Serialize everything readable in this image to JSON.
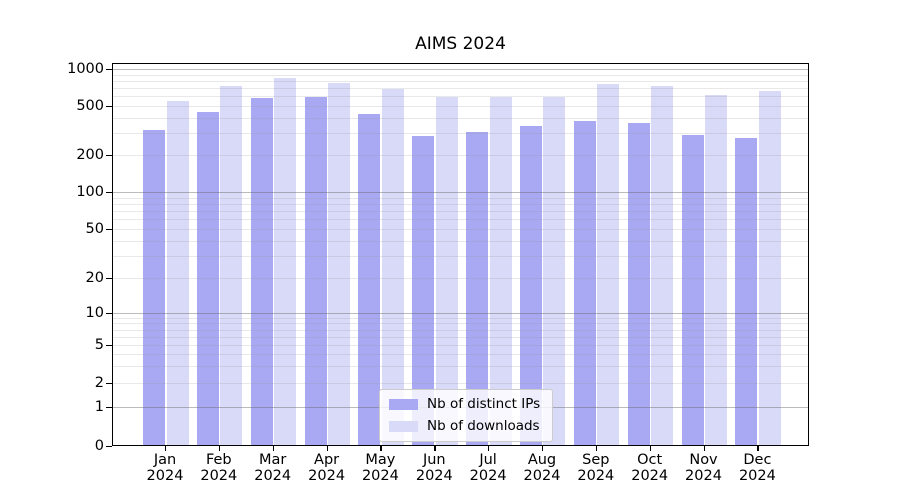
{
  "title": "AIMS 2024",
  "colors": {
    "ips": "#a8a8f3",
    "downloads": "#d9d9f8",
    "grid_major": "#b0b0b0",
    "grid_minor": "#e8e8e8"
  },
  "legend": {
    "items": [
      {
        "label": "Nb of distinct IPs",
        "series": "ips"
      },
      {
        "label": "Nb of downloads",
        "series": "downloads"
      }
    ]
  },
  "y_axis": {
    "tick_labels": [
      "1000",
      "500",
      "200",
      "100",
      "50",
      "20",
      "10",
      "5",
      "2",
      "1",
      "0"
    ]
  },
  "chart_data": {
    "type": "bar",
    "title": "AIMS 2024",
    "categories": [
      "Jan 2024",
      "Feb 2024",
      "Mar 2024",
      "Apr 2024",
      "May 2024",
      "Jun 2024",
      "Jul 2024",
      "Aug 2024",
      "Sep 2024",
      "Oct 2024",
      "Nov 2024",
      "Dec 2024"
    ],
    "series": [
      {
        "name": "Nb of distinct IPs",
        "color": "#a8a8f3",
        "values": [
          320,
          448,
          578,
          594,
          428,
          285,
          308,
          342,
          376,
          364,
          289,
          273
        ]
      },
      {
        "name": "Nb of downloads",
        "color": "#d9d9f8",
        "values": [
          545,
          730,
          848,
          772,
          692,
          590,
          588,
          592,
          760,
          726,
          620,
          665
        ]
      }
    ],
    "xlabel": "",
    "ylabel": "",
    "yscale": "symlog",
    "y_ticks": [
      0,
      1,
      2,
      5,
      10,
      20,
      50,
      100,
      200,
      500,
      1000
    ],
    "ylim": [
      0,
      1050
    ],
    "grid": "both",
    "legend_position": "lower center"
  }
}
